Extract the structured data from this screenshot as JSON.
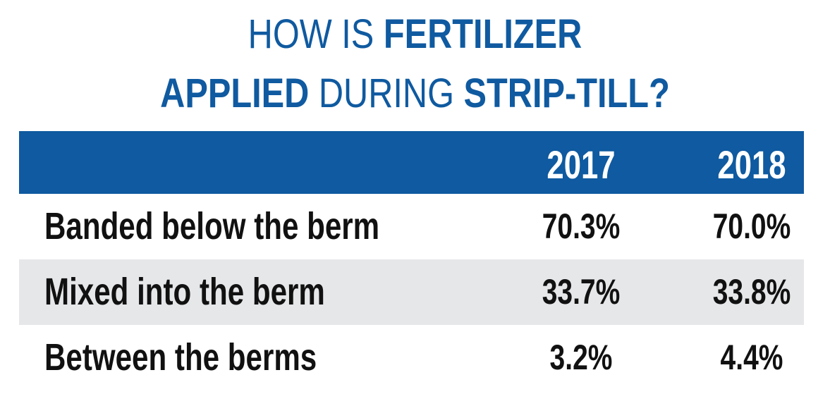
{
  "colors": {
    "accent": "#0f5aa0",
    "shaded_row": "#e6e7e9",
    "text": "#111111",
    "header_text": "#ffffff"
  },
  "title": {
    "line1": [
      {
        "text": "HOW IS ",
        "weight": "light"
      },
      {
        "text": "FERTILIZER",
        "weight": "bold"
      }
    ],
    "line2": [
      {
        "text": "APPLIED",
        "weight": "bold"
      },
      {
        "text": " DURING ",
        "weight": "light"
      },
      {
        "text": "STRIP-TILL?",
        "weight": "bold"
      }
    ]
  },
  "chart_data": {
    "type": "table",
    "title": "HOW IS FERTILIZER APPLIED DURING STRIP-TILL?",
    "columns": [
      "2017",
      "2018"
    ],
    "rows": [
      {
        "label": "Banded below the berm",
        "values": [
          "70.3%",
          "70.0%"
        ]
      },
      {
        "label": "Mixed into the berm",
        "values": [
          "33.7%",
          "33.8%"
        ]
      },
      {
        "label": "Between the berms",
        "values": [
          "3.2%",
          "4.4%"
        ]
      }
    ]
  }
}
